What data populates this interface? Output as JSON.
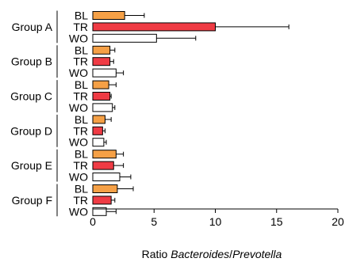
{
  "chart_data": {
    "type": "bar",
    "orientation": "horizontal",
    "title": "",
    "xlabel": {
      "prefix": "Ratio ",
      "italic_1": "Bacteroides",
      "separator": "/",
      "italic_2": "Prevotella"
    },
    "xlim": [
      0,
      20
    ],
    "xticks": [
      0,
      5,
      10,
      15,
      20
    ],
    "grid": false,
    "colors": {
      "BL": "#f5a046",
      "TR": "#ef3b44",
      "WO": "#ffffff",
      "edge": "#000000"
    },
    "groups": [
      {
        "name": "Group A",
        "bars": [
          {
            "label": "BL",
            "value": 2.6,
            "error": 1.6
          },
          {
            "label": "TR",
            "value": 10.0,
            "error": 6.0
          },
          {
            "label": "WO",
            "value": 5.2,
            "error": 3.2
          }
        ]
      },
      {
        "name": "Group B",
        "bars": [
          {
            "label": "BL",
            "value": 1.4,
            "error": 0.4
          },
          {
            "label": "TR",
            "value": 1.4,
            "error": 0.3
          },
          {
            "label": "WO",
            "value": 1.9,
            "error": 0.6
          }
        ]
      },
      {
        "name": "Group C",
        "bars": [
          {
            "label": "BL",
            "value": 1.3,
            "error": 0.6
          },
          {
            "label": "TR",
            "value": 1.4,
            "error": 0.1
          },
          {
            "label": "WO",
            "value": 1.6,
            "error": 0.2
          }
        ]
      },
      {
        "name": "Group D",
        "bars": [
          {
            "label": "BL",
            "value": 1.0,
            "error": 0.5
          },
          {
            "label": "TR",
            "value": 0.8,
            "error": 0.2
          },
          {
            "label": "WO",
            "value": 0.9,
            "error": 0.2
          }
        ]
      },
      {
        "name": "Group E",
        "bars": [
          {
            "label": "BL",
            "value": 1.9,
            "error": 0.6
          },
          {
            "label": "TR",
            "value": 1.7,
            "error": 0.8
          },
          {
            "label": "WO",
            "value": 2.2,
            "error": 0.9
          }
        ]
      },
      {
        "name": "Group F",
        "bars": [
          {
            "label": "BL",
            "value": 2.0,
            "error": 1.3
          },
          {
            "label": "TR",
            "value": 1.5,
            "error": 0.3
          },
          {
            "label": "WO",
            "value": 1.1,
            "error": 0.8
          }
        ]
      }
    ]
  }
}
